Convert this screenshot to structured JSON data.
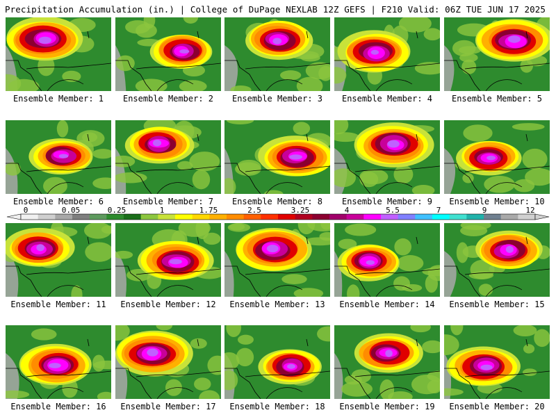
{
  "header": {
    "left": "Precipitation Accumulation (in.) | College of DuPage NEXLAB",
    "right": "12Z GEFS | F210 Valid: 06Z TUE JUN 17 2025"
  },
  "colorbar": {
    "labels": [
      "0",
      "0.05",
      "0.25",
      "1",
      "1.75",
      "2.5",
      "3.25",
      "4",
      "5.5",
      "7",
      "9",
      "12"
    ],
    "colors": [
      "#f0f0f0",
      "#cfcfcf",
      "#a8a8a8",
      "#7f7f7f",
      "#5e9a5e",
      "#2e8b2e",
      "#1a6e1a",
      "#8cc63f",
      "#c8e23a",
      "#ffff00",
      "#ffd700",
      "#ffb000",
      "#ff8c00",
      "#ff6000",
      "#ff3000",
      "#e00000",
      "#b00020",
      "#8b0030",
      "#a0006a",
      "#c8009a",
      "#ff00ff",
      "#c060ff",
      "#8080ff",
      "#40c0ff",
      "#00ffff",
      "#40e0d0",
      "#20b2aa",
      "#708090",
      "#a9a9a9",
      "#d0d0d0"
    ]
  },
  "panels": [
    {
      "label": "Ensemble Member: 1"
    },
    {
      "label": "Ensemble Member: 2"
    },
    {
      "label": "Ensemble Member: 3"
    },
    {
      "label": "Ensemble Member: 4"
    },
    {
      "label": "Ensemble Member: 5"
    },
    {
      "label": "Ensemble Member: 6"
    },
    {
      "label": "Ensemble Member: 7"
    },
    {
      "label": "Ensemble Member: 8"
    },
    {
      "label": "Ensemble Member: 9"
    },
    {
      "label": "Ensemble Member: 10"
    },
    {
      "label": "Ensemble Member: 11"
    },
    {
      "label": "Ensemble Member: 12"
    },
    {
      "label": "Ensemble Member: 13"
    },
    {
      "label": "Ensemble Member: 14"
    },
    {
      "label": "Ensemble Member: 15"
    },
    {
      "label": "Ensemble Member: 16"
    },
    {
      "label": "Ensemble Member: 17"
    },
    {
      "label": "Ensemble Member: 18"
    },
    {
      "label": "Ensemble Member: 19"
    },
    {
      "label": "Ensemble Member: 20"
    }
  ]
}
